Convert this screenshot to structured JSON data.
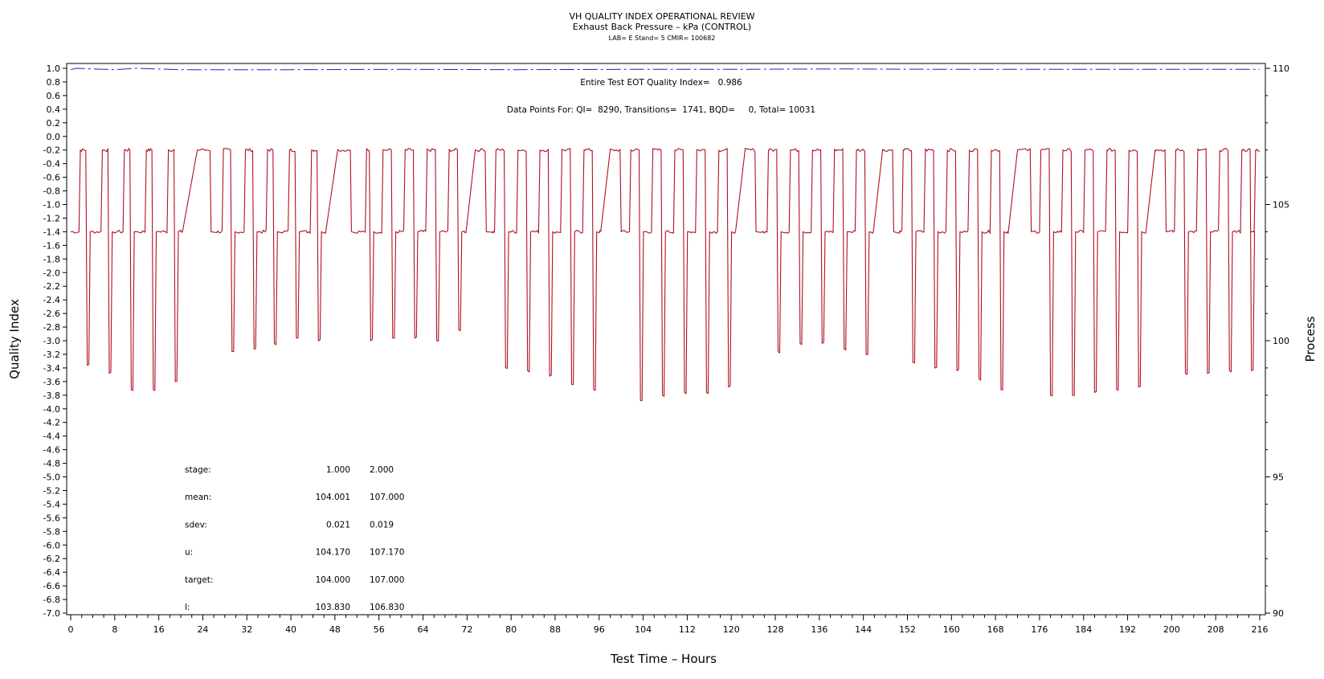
{
  "chart_data": {
    "type": "line",
    "title": "VH QUALITY INDEX OPERATIONAL REVIEW",
    "subtitle": "Exhaust Back Pressure – kPa (CONTROL)",
    "subtitle2": "LAB= E Stand= 5 CMIR= 100682",
    "xlabel": "Test Time – Hours",
    "ylabel_left": "Quality Index",
    "ylabel_right": "Process",
    "xlim": [
      0,
      216
    ],
    "ylim_left": [
      -7.0,
      1.0
    ],
    "ylim_right": [
      90,
      110
    ],
    "x_ticks": [
      0,
      8,
      16,
      24,
      32,
      40,
      48,
      56,
      64,
      72,
      80,
      88,
      96,
      104,
      112,
      120,
      128,
      136,
      144,
      152,
      160,
      168,
      176,
      184,
      192,
      200,
      208,
      216
    ],
    "y_ticks_left": [
      "1.0",
      "0.8",
      "0.6",
      "0.4",
      "0.2",
      "0.0",
      "-0.2",
      "-0.4",
      "-0.6",
      "-0.8",
      "-1.0",
      "-1.2",
      "-1.4",
      "-1.6",
      "-1.8",
      "-2.0",
      "-2.2",
      "-2.4",
      "-2.6",
      "-2.8",
      "-3.0",
      "-3.2",
      "-3.4",
      "-3.6",
      "-3.8",
      "-4.0",
      "-4.2",
      "-4.4",
      "-4.6",
      "-4.8",
      "-5.0",
      "-5.2",
      "-5.4",
      "-5.6",
      "-5.8",
      "-6.0",
      "-6.2",
      "-6.4",
      "-6.6",
      "-6.8",
      "-7.0"
    ],
    "y_ticks_right": [
      90,
      95,
      100,
      105,
      110
    ],
    "annotations": {
      "quality_index": "Entire Test EOT Quality Index=   0.986",
      "data_points": "Data Points For: QI=  8290, Transitions=  1741, BQD=     0, Total= 10031"
    },
    "stats_table": {
      "rows": [
        {
          "label": "stage:",
          "v1": "1.000",
          "v2": "2.000"
        },
        {
          "label": "mean:",
          "v1": "104.001",
          "v2": "107.000"
        },
        {
          "label": "sdev:",
          "v1": "0.021",
          "v2": "0.019"
        },
        {
          "label": "u:",
          "v1": "104.170",
          "v2": "107.170"
        },
        {
          "label": "target:",
          "v1": "104.000",
          "v2": "107.000"
        },
        {
          "label": "l:",
          "v1": "103.830",
          "v2": "106.830"
        }
      ]
    },
    "series": [
      {
        "color": "#b01020",
        "axis": "right",
        "description_levels": {
          "low": 104.0,
          "high": 107.0
        },
        "cycles": [
          {
            "start": 0.0,
            "up": 1.5,
            "end": 3.0,
            "dip": 99.1
          },
          {
            "start": 4.0,
            "up": 5.5,
            "end": 7.0,
            "dip": 98.8
          },
          {
            "start": 8.0,
            "up": 9.5,
            "end": 11.0,
            "dip": 98.2
          },
          {
            "start": 12.0,
            "up": 13.5,
            "end": 15.0,
            "dip": 98.2
          },
          {
            "start": 16.0,
            "up": 17.5,
            "end": 19.0,
            "dip": 98.5
          },
          {
            "start": 20.0,
            "up": 23.0,
            "end": 25.5,
            "dip": null
          },
          {
            "start": 26.5,
            "up": 27.5,
            "end": 29.3,
            "dip": 99.6
          },
          {
            "start": 30.5,
            "up": 31.5,
            "end": 33.3,
            "dip": 99.7
          },
          {
            "start": 34.5,
            "up": 35.5,
            "end": 37.0,
            "dip": 99.9
          },
          {
            "start": 38.5,
            "up": 39.5,
            "end": 41.0,
            "dip": 100.1
          },
          {
            "start": 42.5,
            "up": 43.5,
            "end": 45.0,
            "dip": 100.0
          },
          {
            "start": 46.0,
            "up": 48.5,
            "end": 51.0,
            "dip": null
          },
          {
            "start": 52.0,
            "up": 53.5,
            "end": 54.5,
            "dip": 100.0
          },
          {
            "start": 55.5,
            "up": 56.5,
            "end": 58.5,
            "dip": 100.1
          },
          {
            "start": 59.5,
            "up": 60.5,
            "end": 62.5,
            "dip": 100.1
          },
          {
            "start": 63.5,
            "up": 64.5,
            "end": 66.5,
            "dip": 100.0
          },
          {
            "start": 67.5,
            "up": 68.5,
            "end": 70.5,
            "dip": 100.4
          },
          {
            "start": 71.5,
            "up": 73.5,
            "end": 75.5,
            "dip": null
          },
          {
            "start": 76.5,
            "up": 77.0,
            "end": 79.0,
            "dip": 99.0
          },
          {
            "start": 80.0,
            "up": 81.0,
            "end": 83.0,
            "dip": 98.9
          },
          {
            "start": 84.0,
            "up": 85.0,
            "end": 87.0,
            "dip": 98.7
          },
          {
            "start": 88.0,
            "up": 89.0,
            "end": 91.0,
            "dip": 98.4
          },
          {
            "start": 92.0,
            "up": 93.0,
            "end": 95.0,
            "dip": 98.2
          },
          {
            "start": 96.0,
            "up": 98.0,
            "end": 100.0,
            "dip": null
          },
          {
            "start": 100.5,
            "up": 101.5,
            "end": 103.5,
            "dip": 97.8
          },
          {
            "start": 104.5,
            "up": 105.5,
            "end": 107.5,
            "dip": 98.0
          },
          {
            "start": 108.5,
            "up": 109.5,
            "end": 111.5,
            "dip": 98.1
          },
          {
            "start": 112.5,
            "up": 113.5,
            "end": 115.5,
            "dip": 98.1
          },
          {
            "start": 116.5,
            "up": 117.5,
            "end": 119.5,
            "dip": 98.3
          },
          {
            "start": 120.5,
            "up": 122.5,
            "end": 124.5,
            "dip": null
          },
          {
            "start": 125.5,
            "up": 126.5,
            "end": 128.5,
            "dip": 99.6
          },
          {
            "start": 129.5,
            "up": 130.5,
            "end": 132.5,
            "dip": 99.9
          },
          {
            "start": 133.5,
            "up": 134.5,
            "end": 136.5,
            "dip": 99.9
          },
          {
            "start": 137.5,
            "up": 138.5,
            "end": 140.5,
            "dip": 99.7
          },
          {
            "start": 141.5,
            "up": 142.5,
            "end": 144.5,
            "dip": 99.5
          },
          {
            "start": 145.5,
            "up": 147.5,
            "end": 149.5,
            "dip": null
          },
          {
            "start": 150.5,
            "up": 151.0,
            "end": 153.0,
            "dip": 99.2
          },
          {
            "start": 154.0,
            "up": 155.0,
            "end": 157.0,
            "dip": 99.0
          },
          {
            "start": 158.0,
            "up": 159.0,
            "end": 161.0,
            "dip": 98.9
          },
          {
            "start": 162.0,
            "up": 163.0,
            "end": 165.0,
            "dip": 98.6
          },
          {
            "start": 166.0,
            "up": 167.0,
            "end": 169.0,
            "dip": 98.2
          },
          {
            "start": 170.0,
            "up": 172.0,
            "end": 174.5,
            "dip": null
          },
          {
            "start": 175.0,
            "up": 176.0,
            "end": 178.0,
            "dip": 98.0
          },
          {
            "start": 179.0,
            "up": 180.0,
            "end": 182.0,
            "dip": 98.0
          },
          {
            "start": 183.0,
            "up": 184.0,
            "end": 186.0,
            "dip": 98.1
          },
          {
            "start": 187.0,
            "up": 188.0,
            "end": 190.0,
            "dip": 98.2
          },
          {
            "start": 191.0,
            "up": 192.0,
            "end": 194.0,
            "dip": 98.3
          },
          {
            "start": 195.0,
            "up": 197.0,
            "end": 199.0,
            "dip": null
          },
          {
            "start": 200.0,
            "up": 200.5,
            "end": 202.5,
            "dip": 98.8
          },
          {
            "start": 203.5,
            "up": 204.5,
            "end": 206.5,
            "dip": 98.8
          },
          {
            "start": 207.5,
            "up": 208.5,
            "end": 210.5,
            "dip": 98.9
          },
          {
            "start": 211.5,
            "up": 212.5,
            "end": 214.5,
            "dip": 98.9
          }
        ],
        "final_up": 215.0,
        "x_end": 216.0
      },
      {
        "color": "#2020c0",
        "axis": "left",
        "dashed": true,
        "x": [
          0,
          1,
          4,
          8,
          12,
          20,
          40,
          60,
          80,
          100,
          120,
          140,
          160,
          180,
          200,
          216
        ],
        "y": [
          0.98,
          1.0,
          0.99,
          0.98,
          1.0,
          0.98,
          0.98,
          0.985,
          0.98,
          0.985,
          0.985,
          0.99,
          0.985,
          0.985,
          0.985,
          0.985
        ]
      }
    ]
  }
}
